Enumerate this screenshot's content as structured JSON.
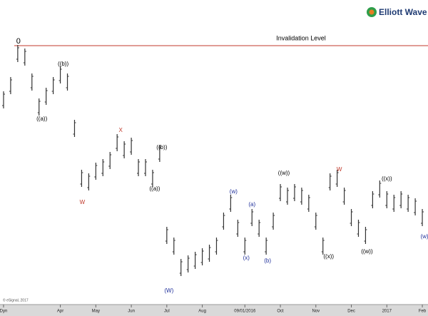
{
  "chart_data": {
    "type": "range-bar",
    "logo": "Elliott Wave F",
    "copyright": "© eSignal, 2017",
    "color": "#333333",
    "ylim": [
      1490,
      1900
    ],
    "xlim": [
      -0.5,
      59.8
    ],
    "high": [
      1787,
      1807,
      1852,
      1847,
      1812,
      1777,
      1792,
      1807,
      1822,
      1812,
      1747,
      1677,
      1672,
      1687,
      1692,
      1702,
      1727,
      1717,
      1722,
      1692,
      1692,
      1677,
      1712,
      1597,
      1582,
      1552,
      1557,
      1562,
      1567,
      1572,
      1582,
      1617,
      1642,
      1607,
      1582,
      1622,
      1607,
      1582,
      1617,
      1657,
      1652,
      1657,
      1652,
      1642,
      1617,
      1582,
      1672,
      1677,
      1652,
      1622,
      1607,
      1597,
      1647,
      1662,
      1647,
      1642,
      1647,
      1642,
      1637,
      1622
    ],
    "low": [
      1763,
      1783,
      1828,
      1823,
      1788,
      1753,
      1768,
      1783,
      1798,
      1788,
      1723,
      1653,
      1648,
      1663,
      1668,
      1678,
      1703,
      1693,
      1698,
      1668,
      1668,
      1653,
      1688,
      1573,
      1558,
      1528,
      1533,
      1538,
      1543,
      1548,
      1558,
      1593,
      1618,
      1583,
      1558,
      1598,
      1583,
      1558,
      1593,
      1633,
      1628,
      1633,
      1628,
      1618,
      1593,
      1558,
      1648,
      1653,
      1628,
      1598,
      1583,
      1573,
      1623,
      1638,
      1623,
      1618,
      1623,
      1618,
      1613,
      1598
    ],
    "xticks": [
      {
        "value": 0,
        "label": "Dyn"
      },
      {
        "value": 8,
        "label": "Apr"
      },
      {
        "value": 13,
        "label": "May"
      },
      {
        "value": 18,
        "label": "Jun"
      },
      {
        "value": 23,
        "label": "Jul"
      },
      {
        "value": 28,
        "label": "Aug"
      },
      {
        "value": 34,
        "label": "09/01/2016"
      },
      {
        "value": 39,
        "label": "Oct"
      },
      {
        "value": 44,
        "label": "Nov"
      },
      {
        "value": 49,
        "label": "Dec"
      },
      {
        "value": 54,
        "label": "2017"
      },
      {
        "value": 59,
        "label": "Feb"
      }
    ],
    "invalidation": {
      "label": "Invalidation Level",
      "value": 1851,
      "color": "#c0392b"
    },
    "annotations": [
      {
        "text": "0",
        "x": 2.1,
        "y": 1857,
        "color": "#000000"
      },
      {
        "text": "((b))",
        "x": 8.4,
        "y": 1825,
        "color": "#000000"
      },
      {
        "text": "((a))",
        "x": 5.4,
        "y": 1748,
        "color": "#000000"
      },
      {
        "text": "X",
        "x": 16.5,
        "y": 1732,
        "color": "#c0392b"
      },
      {
        "text": "W",
        "x": 11.1,
        "y": 1631,
        "color": "#c0392b"
      },
      {
        "text": "((b))",
        "x": 22.3,
        "y": 1708,
        "color": "#000000"
      },
      {
        "text": "((a))",
        "x": 21.3,
        "y": 1650,
        "color": "#000000"
      },
      {
        "text": "(W)",
        "x": 23.3,
        "y": 1507,
        "color": "#1f2f9a"
      },
      {
        "text": "(w)",
        "x": 32.4,
        "y": 1646,
        "color": "#1f2f9a"
      },
      {
        "text": "(x)",
        "x": 34.2,
        "y": 1553,
        "color": "#1f2f9a"
      },
      {
        "text": "(a)",
        "x": 35,
        "y": 1628,
        "color": "#1f2f9a"
      },
      {
        "text": "(b)",
        "x": 37.2,
        "y": 1549,
        "color": "#1f2f9a"
      },
      {
        "text": "((w))",
        "x": 39.5,
        "y": 1672,
        "color": "#000000"
      },
      {
        "text": "((x))",
        "x": 45.8,
        "y": 1555,
        "color": "#000000"
      },
      {
        "text": "W",
        "x": 47.3,
        "y": 1677,
        "color": "#c0392b"
      },
      {
        "text": "((w))",
        "x": 51.2,
        "y": 1562,
        "color": "#000000"
      },
      {
        "text": "((x))",
        "x": 54,
        "y": 1664,
        "color": "#000000"
      },
      {
        "text": "(w)",
        "x": 59.3,
        "y": 1583,
        "color": "#1f2f9a"
      }
    ]
  }
}
